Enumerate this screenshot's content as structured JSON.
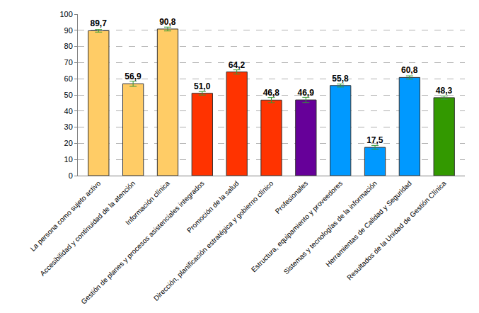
{
  "chart_data": {
    "type": "bar",
    "categories": [
      "La persona como sujeto activo",
      "Accesibilidad y continuidad de la atención",
      "Información clínica",
      "Gestión de planes y procesos asistenciales integrados",
      "Promoción de la salud",
      "Dirección, planificación estratégica y gobierno clínico",
      "Profesionales",
      "Estructura, equipamiento y proveedores",
      "Sistemas y tecnologías de la información",
      "Herramientas de Calidad y Seguridad",
      "Resultados de la Unidad de Gestión Clínica"
    ],
    "values": [
      89.7,
      56.9,
      90.8,
      51.0,
      64.2,
      46.8,
      46.9,
      55.8,
      17.5,
      60.8,
      48.3
    ],
    "value_labels": [
      "89,7",
      "56,9",
      "90,8",
      "51,0",
      "64,2",
      "46,8",
      "46,9",
      "55,8",
      "17,5",
      "60,8",
      "48,3"
    ],
    "errors": [
      0.8,
      1.6,
      1.2,
      1.1,
      1.3,
      1.6,
      1.6,
      0.9,
      1.2,
      1.0,
      1.0
    ],
    "colors": [
      "#FFCC66",
      "#FFCC66",
      "#FFCC66",
      "#FF3300",
      "#FF3300",
      "#FF3300",
      "#660099",
      "#0099FF",
      "#0099FF",
      "#0099FF",
      "#339900"
    ],
    "ylim": [
      0,
      100
    ],
    "yticks": [
      0,
      10,
      20,
      30,
      40,
      50,
      60,
      70,
      80,
      90,
      100
    ],
    "grid": true,
    "data_labels": true
  }
}
